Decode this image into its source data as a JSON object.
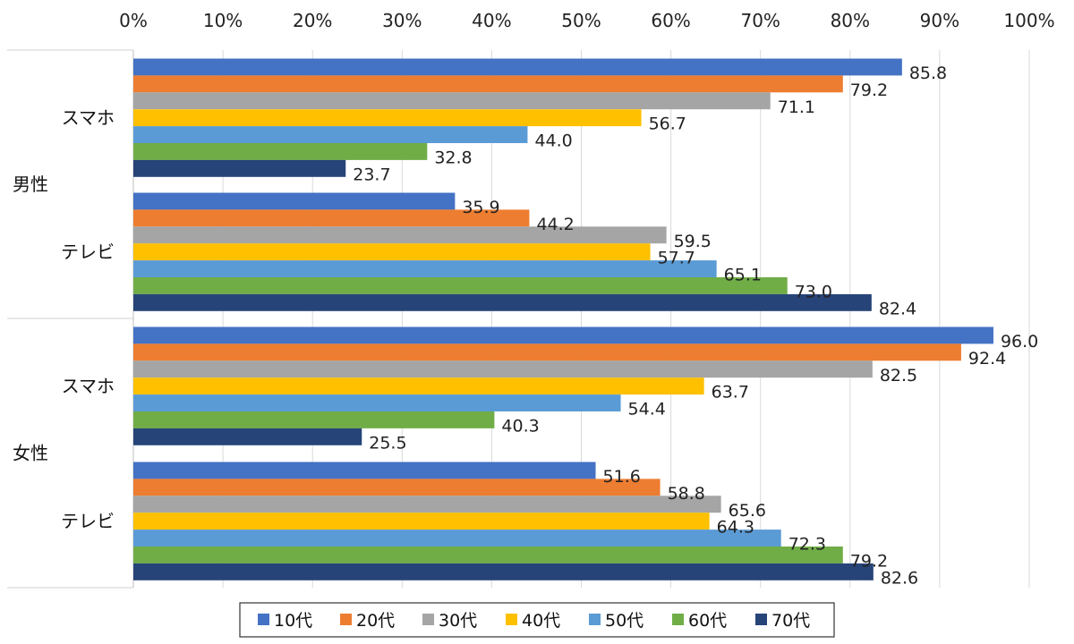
{
  "chart_data": {
    "type": "bar",
    "orientation": "horizontal",
    "title": "",
    "xlabel": "",
    "ylabel": "",
    "xlim": [
      0,
      100
    ],
    "x_ticks": [
      "0%",
      "10%",
      "20%",
      "30%",
      "40%",
      "50%",
      "60%",
      "70%",
      "80%",
      "90%",
      "100%"
    ],
    "grid": true,
    "legend_position": "bottom",
    "groups": [
      {
        "label": "男性",
        "categories": [
          {
            "label": "スマホ",
            "values": [
              85.8,
              79.2,
              71.1,
              56.7,
              44.0,
              32.8,
              23.7
            ]
          },
          {
            "label": "テレビ",
            "values": [
              35.9,
              44.2,
              59.5,
              57.7,
              65.1,
              73.0,
              82.4
            ]
          }
        ]
      },
      {
        "label": "女性",
        "categories": [
          {
            "label": "スマホ",
            "values": [
              96.0,
              92.4,
              82.5,
              63.7,
              54.4,
              40.3,
              25.5
            ]
          },
          {
            "label": "テレビ",
            "values": [
              51.6,
              58.8,
              65.6,
              64.3,
              72.3,
              79.2,
              82.6
            ]
          }
        ]
      }
    ],
    "series": [
      {
        "name": "10代",
        "color": "#4472C4"
      },
      {
        "name": "20代",
        "color": "#ED7D31"
      },
      {
        "name": "30代",
        "color": "#A5A5A5"
      },
      {
        "name": "40代",
        "color": "#FFC000"
      },
      {
        "name": "50代",
        "color": "#5B9BD5"
      },
      {
        "name": "60代",
        "color": "#70AD47"
      },
      {
        "name": "70代",
        "color": "#264478"
      }
    ]
  }
}
